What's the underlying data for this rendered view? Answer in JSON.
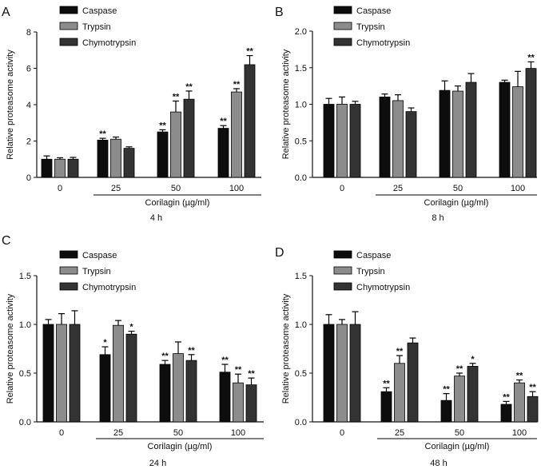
{
  "colors": {
    "caspase": "#0d0d0d",
    "trypsin": "#8c8c8c",
    "chymotrypsin": "#333333",
    "axis": "#111111"
  },
  "chart_data": [
    {
      "panel": "A",
      "type": "bar",
      "xlabel": "Corilagin (µg/ml)",
      "time_label": "4 h",
      "ylabel": "Relative proteasome activity",
      "ylim": [
        0,
        8
      ],
      "yticks": [
        "0",
        "2",
        "4",
        "6",
        "8"
      ],
      "categories": [
        "0",
        "25",
        "50",
        "100"
      ],
      "legend": [
        "Caspase",
        "Trypsin",
        "Chymotrypsin"
      ],
      "series": [
        {
          "name": "Caspase",
          "values": [
            1.0,
            2.05,
            2.5,
            2.7
          ],
          "errors": [
            0.18,
            0.1,
            0.12,
            0.15
          ],
          "sig": [
            "",
            "**",
            "**",
            "**"
          ]
        },
        {
          "name": "Trypsin",
          "values": [
            1.0,
            2.1,
            3.6,
            4.7
          ],
          "errors": [
            0.08,
            0.12,
            0.6,
            0.18
          ],
          "sig": [
            "",
            "",
            "**",
            "**"
          ]
        },
        {
          "name": "Chymotrypsin",
          "values": [
            1.0,
            1.6,
            4.3,
            6.2
          ],
          "errors": [
            0.1,
            0.08,
            0.45,
            0.5
          ],
          "sig": [
            "",
            "",
            "**",
            "**"
          ]
        }
      ]
    },
    {
      "panel": "B",
      "type": "bar",
      "xlabel": "Corilagin (µg/ml)",
      "time_label": "8 h",
      "ylabel": "Relative proteasome activity",
      "ylim": [
        0,
        2.0
      ],
      "yticks": [
        "0.0",
        "0.5",
        "1.0",
        "1.5",
        "2.0"
      ],
      "categories": [
        "0",
        "25",
        "50",
        "100"
      ],
      "legend": [
        "Caspase",
        "Trypsin",
        "Chymotrypsin"
      ],
      "series": [
        {
          "name": "Caspase",
          "values": [
            1.0,
            1.1,
            1.19,
            1.3
          ],
          "errors": [
            0.08,
            0.04,
            0.13,
            0.03
          ],
          "sig": [
            "",
            "",
            "",
            ""
          ]
        },
        {
          "name": "Trypsin",
          "values": [
            1.0,
            1.05,
            1.18,
            1.24
          ],
          "errors": [
            0.1,
            0.08,
            0.07,
            0.21
          ],
          "sig": [
            "",
            "",
            "",
            ""
          ]
        },
        {
          "name": "Chymotrypsin",
          "values": [
            1.0,
            0.9,
            1.3,
            1.49
          ],
          "errors": [
            0.04,
            0.05,
            0.12,
            0.09
          ],
          "sig": [
            "",
            "",
            "",
            "**"
          ]
        }
      ]
    },
    {
      "panel": "C",
      "type": "bar",
      "xlabel": "Corilagin (µg/ml)",
      "time_label": "24 h",
      "ylabel": "Relative proteasome activity",
      "ylim": [
        0,
        1.5
      ],
      "yticks": [
        "0.0",
        "0.5",
        "1.0",
        "1.5"
      ],
      "categories": [
        "0",
        "25",
        "50",
        "100"
      ],
      "legend": [
        "Caspase",
        "Trypsin",
        "Chymotrypsin"
      ],
      "series": [
        {
          "name": "Caspase",
          "values": [
            1.0,
            0.69,
            0.59,
            0.51
          ],
          "errors": [
            0.05,
            0.08,
            0.04,
            0.08
          ],
          "sig": [
            "",
            "*",
            "**",
            "**"
          ]
        },
        {
          "name": "Trypsin",
          "values": [
            1.0,
            0.99,
            0.7,
            0.4
          ],
          "errors": [
            0.11,
            0.05,
            0.12,
            0.09
          ],
          "sig": [
            "",
            "",
            "",
            "**"
          ]
        },
        {
          "name": "Chymotrypsin",
          "values": [
            1.0,
            0.9,
            0.63,
            0.38
          ],
          "errors": [
            0.14,
            0.03,
            0.06,
            0.07
          ],
          "sig": [
            "",
            "*",
            "**",
            "**"
          ]
        }
      ]
    },
    {
      "panel": "D",
      "type": "bar",
      "xlabel": "Corilagin (µg/ml)",
      "time_label": "48 h",
      "ylabel": "Relative proteasome activity",
      "ylim": [
        0,
        1.5
      ],
      "yticks": [
        "0.0",
        "0.5",
        "1.0",
        "1.5"
      ],
      "categories": [
        "0",
        "25",
        "50",
        "100"
      ],
      "legend": [
        "Caspase",
        "Trypsin",
        "Chymotrypsin"
      ],
      "series": [
        {
          "name": "Caspase",
          "values": [
            1.0,
            0.31,
            0.22,
            0.18
          ],
          "errors": [
            0.1,
            0.04,
            0.07,
            0.03
          ],
          "sig": [
            "",
            "**",
            "**",
            "**"
          ]
        },
        {
          "name": "Trypsin",
          "values": [
            1.0,
            0.6,
            0.47,
            0.4
          ],
          "errors": [
            0.05,
            0.08,
            0.03,
            0.03
          ],
          "sig": [
            "",
            "**",
            "**",
            "**"
          ]
        },
        {
          "name": "Chymotrypsin",
          "values": [
            1.0,
            0.81,
            0.57,
            0.26
          ],
          "errors": [
            0.13,
            0.05,
            0.03,
            0.05
          ],
          "sig": [
            "",
            "",
            "*",
            "**"
          ]
        }
      ]
    }
  ]
}
